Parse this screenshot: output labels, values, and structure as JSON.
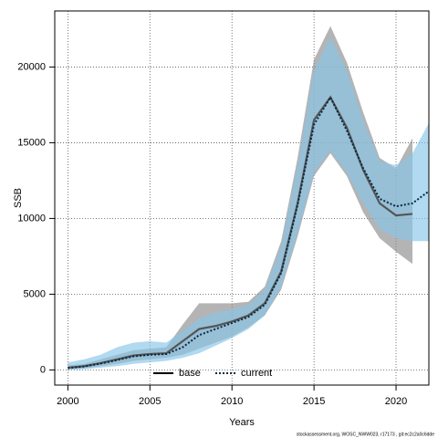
{
  "chart_data": {
    "type": "line",
    "x_label": "Years",
    "y_label": "SSB",
    "footnote": "stockassessment.org, WOSC_NWW023, r17173 , git:ec2c2a0c6dde",
    "x": [
      2000,
      2001,
      2002,
      2003,
      2004,
      2005,
      2006,
      2007,
      2008,
      2009,
      2010,
      2011,
      2012,
      2013,
      2014,
      2015,
      2016,
      2017,
      2018,
      2019,
      2020,
      2021,
      2022
    ],
    "xlim": [
      1999.2,
      2022
    ],
    "ylim": [
      -1000,
      23700
    ],
    "xticks": [
      2000,
      2005,
      2010,
      2015,
      2020
    ],
    "yticks": [
      0,
      5000,
      10000,
      15000,
      20000
    ],
    "grid": true,
    "legend": "bottom",
    "series": [
      {
        "name": "base",
        "color": "#555555",
        "band_color": "#8c8c8c",
        "dash": "solid",
        "values": [
          150,
          250,
          450,
          700,
          950,
          1050,
          1100,
          1900,
          2700,
          2900,
          3200,
          3600,
          4400,
          6500,
          11000,
          16500,
          18000,
          16000,
          13200,
          11000,
          10200,
          10300,
          null
        ],
        "lower": [
          50,
          100,
          250,
          400,
          600,
          700,
          800,
          1000,
          1400,
          1800,
          2200,
          2800,
          3600,
          5300,
          8800,
          12800,
          14300,
          12800,
          10400,
          8700,
          7800,
          7000,
          null
        ],
        "upper": [
          300,
          400,
          700,
          1000,
          1300,
          1400,
          1500,
          3000,
          4400,
          4400,
          4400,
          4500,
          5500,
          8500,
          14000,
          20500,
          22700,
          20300,
          17000,
          14000,
          13300,
          15300,
          null
        ]
      },
      {
        "name": "current",
        "color": "#0a2a40",
        "band_color": "#87c4e8",
        "dash": "dotted",
        "values": [
          120,
          230,
          420,
          650,
          900,
          1000,
          1050,
          1500,
          2300,
          2700,
          3100,
          3500,
          4300,
          6400,
          10900,
          16200,
          18000,
          15800,
          13300,
          11300,
          10800,
          11000,
          11800
        ],
        "lower": [
          0,
          50,
          150,
          250,
          400,
          500,
          600,
          800,
          1100,
          1600,
          2100,
          2700,
          3600,
          5500,
          9000,
          13000,
          14500,
          13000,
          11000,
          9300,
          8700,
          8500,
          8500
        ],
        "upper": [
          500,
          700,
          1000,
          1500,
          1800,
          1900,
          1800,
          2600,
          3400,
          3800,
          4000,
          4300,
          5300,
          8200,
          13500,
          19800,
          22000,
          19800,
          16500,
          13800,
          13500,
          14300,
          16300
        ]
      }
    ]
  }
}
